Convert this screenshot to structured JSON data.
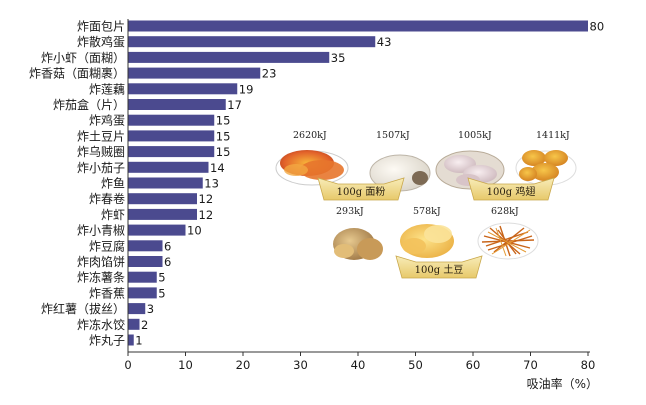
{
  "chart_data": {
    "type": "bar",
    "orientation": "horizontal",
    "categories": [
      "炸面包片",
      "炸散鸡蛋",
      "炸小虾（面糊）",
      "炸香菇（面糊裹）",
      "炸莲藕",
      "炸茄盒（片）",
      "炸鸡蛋",
      "炸土豆片",
      "炸乌贼圈",
      "炸小茄子",
      "炸鱼",
      "炸春卷",
      "炸虾",
      "炸小青椒",
      "炸豆腐",
      "炸肉馅饼",
      "炸冻薯条",
      "炸香蕉",
      "炸红薯（拔丝）",
      "炸冻水饺",
      "炸丸子"
    ],
    "values": [
      80,
      43,
      35,
      23,
      19,
      17,
      15,
      15,
      15,
      14,
      13,
      12,
      12,
      10,
      6,
      6,
      5,
      5,
      3,
      2,
      1
    ],
    "xticks": [
      0,
      10,
      20,
      30,
      40,
      50,
      60,
      70,
      80
    ],
    "xlim": [
      0,
      80
    ],
    "xlabel": "吸油率（%）",
    "ylabel": "",
    "title": "",
    "bar_color": "#4b4a8f",
    "grid": false
  },
  "inset": {
    "groups": [
      {
        "banner": "100g 面粉",
        "items": [
          {
            "kj": "2620kJ",
            "food": "fried-bread-slices"
          },
          {
            "kj": "1507kJ",
            "food": "steamed-bun"
          }
        ]
      },
      {
        "banner": "100g 鸡翅",
        "items": [
          {
            "kj": "1005kJ",
            "food": "raw-chicken-wings"
          },
          {
            "kj": "1411kJ",
            "food": "fried-chicken-wings"
          }
        ]
      },
      {
        "banner": "100g 土豆",
        "items": [
          {
            "kj": "293kJ",
            "food": "raw-potato"
          },
          {
            "kj": "578kJ",
            "food": "potato-slices"
          },
          {
            "kj": "628kJ",
            "food": "fried-shredded-potato"
          }
        ]
      }
    ]
  }
}
